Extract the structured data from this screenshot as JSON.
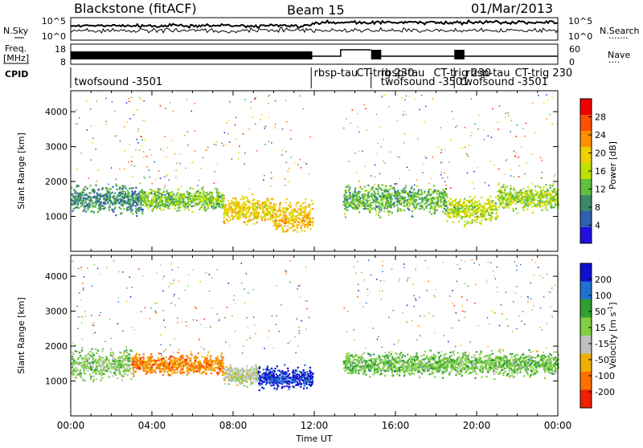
{
  "header": {
    "station": "Blackstone (fitACF)",
    "beam": "Beam 15",
    "date": "01/Mar/2013"
  },
  "sky_panel": {
    "left_label": "N.Sky",
    "left_ticks": [
      "10^5",
      "10^0"
    ],
    "right_ticks": [
      "10^5",
      "10^0"
    ],
    "right_label": "N.Search",
    "right_dots": "......."
  },
  "freq_panel": {
    "left_label_1": "Freq.",
    "left_label_2": "[MHz]",
    "left_ticks": [
      "18",
      "8"
    ],
    "right_ticks": [
      "60",
      "0"
    ],
    "right_label": "Nave",
    "right_dots": "...."
  },
  "cpid": {
    "label": "CPID",
    "entries": [
      {
        "text": "twofsound -3501",
        "hour": 0.1,
        "row": 1
      },
      {
        "text": "rbsp-tau",
        "hour": 11.9,
        "row": 0
      },
      {
        "text": "CT-trig 230",
        "hour": 14.0,
        "row": 0
      },
      {
        "text": "rbsp-tau",
        "hour": 15.2,
        "row": 0
      },
      {
        "text": "twofsound -3501",
        "hour": 15.2,
        "row": 1
      },
      {
        "text": "CT-trig 230",
        "hour": 17.8,
        "row": 0
      },
      {
        "text": "rbsp-tau",
        "hour": 19.4,
        "row": 0
      },
      {
        "text": "twofsound -3501",
        "hour": 19.1,
        "row": 1
      },
      {
        "text": "CT-trig 230",
        "hour": 21.8,
        "row": 0
      }
    ]
  },
  "chart_data": [
    {
      "type": "heatmap",
      "name": "power",
      "ylabel": "Slant Range [km]",
      "yticks": [
        1000,
        2000,
        3000,
        4000
      ],
      "ylim": [
        0,
        4600
      ],
      "xlim": [
        0,
        24
      ],
      "colorbar": {
        "label": "Power [dB]",
        "ticks": [
          "28",
          "24",
          "20",
          "16",
          "12",
          "8",
          "4"
        ],
        "colors": [
          "#f00000",
          "#ff5000",
          "#ff9000",
          "#f0d000",
          "#c0e000",
          "#60c040",
          "#3a8a6a",
          "#3060b0",
          "#2010e0"
        ]
      },
      "bands": [
        {
          "start": 0.0,
          "end": 3.5,
          "lo": 1000,
          "hi": 2100,
          "core": 1500,
          "val": 0.75
        },
        {
          "start": 3.5,
          "end": 7.5,
          "lo": 1200,
          "hi": 2000,
          "core": 1500,
          "val": 0.6
        },
        {
          "start": 7.5,
          "end": 10.0,
          "lo": 800,
          "hi": 1800,
          "core": 1200,
          "val": 0.4
        },
        {
          "start": 10.0,
          "end": 11.9,
          "lo": 600,
          "hi": 1800,
          "core": 1000,
          "val": 0.35
        },
        {
          "start": 13.4,
          "end": 18.5,
          "lo": 1000,
          "hi": 2100,
          "core": 1500,
          "val": 0.65
        },
        {
          "start": 18.5,
          "end": 21.0,
          "lo": 900,
          "hi": 1900,
          "core": 1200,
          "val": 0.5
        },
        {
          "start": 21.0,
          "end": 24.0,
          "lo": 1100,
          "hi": 2000,
          "core": 1550,
          "val": 0.55
        }
      ]
    },
    {
      "type": "heatmap",
      "name": "velocity",
      "ylabel": "Slant Range [km]",
      "yticks": [
        1000,
        2000,
        3000,
        4000
      ],
      "ylim": [
        0,
        4600
      ],
      "xlim": [
        0,
        24
      ],
      "colorbar": {
        "label": "Velocity [m s^-1]",
        "ticks": [
          "200",
          "100",
          "50",
          "15",
          "-15",
          "-50",
          "-100",
          "-200"
        ],
        "colors": [
          "#1010d0",
          "#2070d0",
          "#30a030",
          "#80d040",
          "#c0c0c0",
          "#f0b000",
          "#ff7000",
          "#f02000"
        ]
      },
      "bands": [
        {
          "start": 0.0,
          "end": 3.0,
          "lo": 1000,
          "hi": 2200,
          "core": 1500,
          "val": 0.45
        },
        {
          "start": 3.0,
          "end": 7.5,
          "lo": 1200,
          "hi": 2000,
          "core": 1500,
          "val": 0.8
        },
        {
          "start": 7.5,
          "end": 9.2,
          "lo": 900,
          "hi": 1700,
          "core": 1200,
          "val": 0.55
        },
        {
          "start": 9.2,
          "end": 11.9,
          "lo": 700,
          "hi": 1500,
          "core": 1100,
          "val": 0.05
        },
        {
          "start": 13.4,
          "end": 24.0,
          "lo": 1100,
          "hi": 2000,
          "core": 1500,
          "val": 0.4
        }
      ]
    }
  ],
  "xaxis": {
    "ticks": [
      "00:00",
      "04:00",
      "08:00",
      "12:00",
      "16:00",
      "20:00",
      "00:00"
    ],
    "label": "Time UT"
  }
}
